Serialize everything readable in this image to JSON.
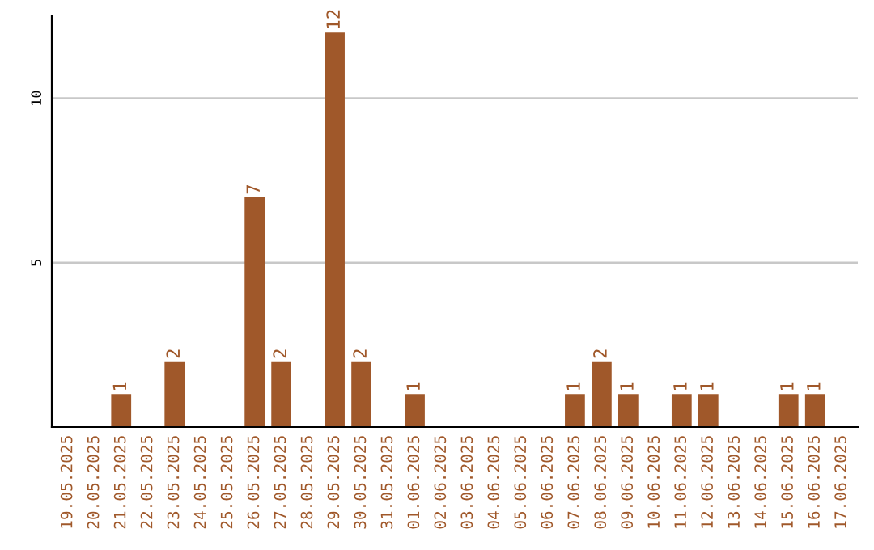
{
  "chart_data": {
    "type": "bar",
    "categories": [
      "19.05.2025",
      "20.05.2025",
      "21.05.2025",
      "22.05.2025",
      "23.05.2025",
      "24.05.2025",
      "25.05.2025",
      "26.05.2025",
      "27.05.2025",
      "28.05.2025",
      "29.05.2025",
      "30.05.2025",
      "31.05.2025",
      "01.06.2025",
      "02.06.2025",
      "03.06.2025",
      "04.06.2025",
      "05.06.2025",
      "06.06.2025",
      "07.06.2025",
      "08.06.2025",
      "09.06.2025",
      "10.06.2025",
      "11.06.2025",
      "12.06.2025",
      "13.06.2025",
      "14.06.2025",
      "15.06.2025",
      "16.06.2025",
      "17.06.2025"
    ],
    "values": [
      0,
      0,
      1,
      0,
      2,
      0,
      0,
      7,
      2,
      0,
      12,
      2,
      0,
      1,
      0,
      0,
      0,
      0,
      0,
      1,
      2,
      1,
      0,
      1,
      1,
      0,
      0,
      1,
      1,
      0
    ],
    "value_labels": [
      null,
      null,
      "1",
      null,
      "2",
      null,
      null,
      "7",
      "2",
      null,
      "12",
      "2",
      null,
      "1",
      null,
      null,
      null,
      null,
      null,
      "1",
      "2",
      "1",
      null,
      "1",
      "1",
      null,
      null,
      "1",
      "1",
      null
    ],
    "color": "#a0582a",
    "ylim": [
      0,
      12.5
    ],
    "yticks": [
      5,
      10
    ],
    "grid": "y"
  }
}
